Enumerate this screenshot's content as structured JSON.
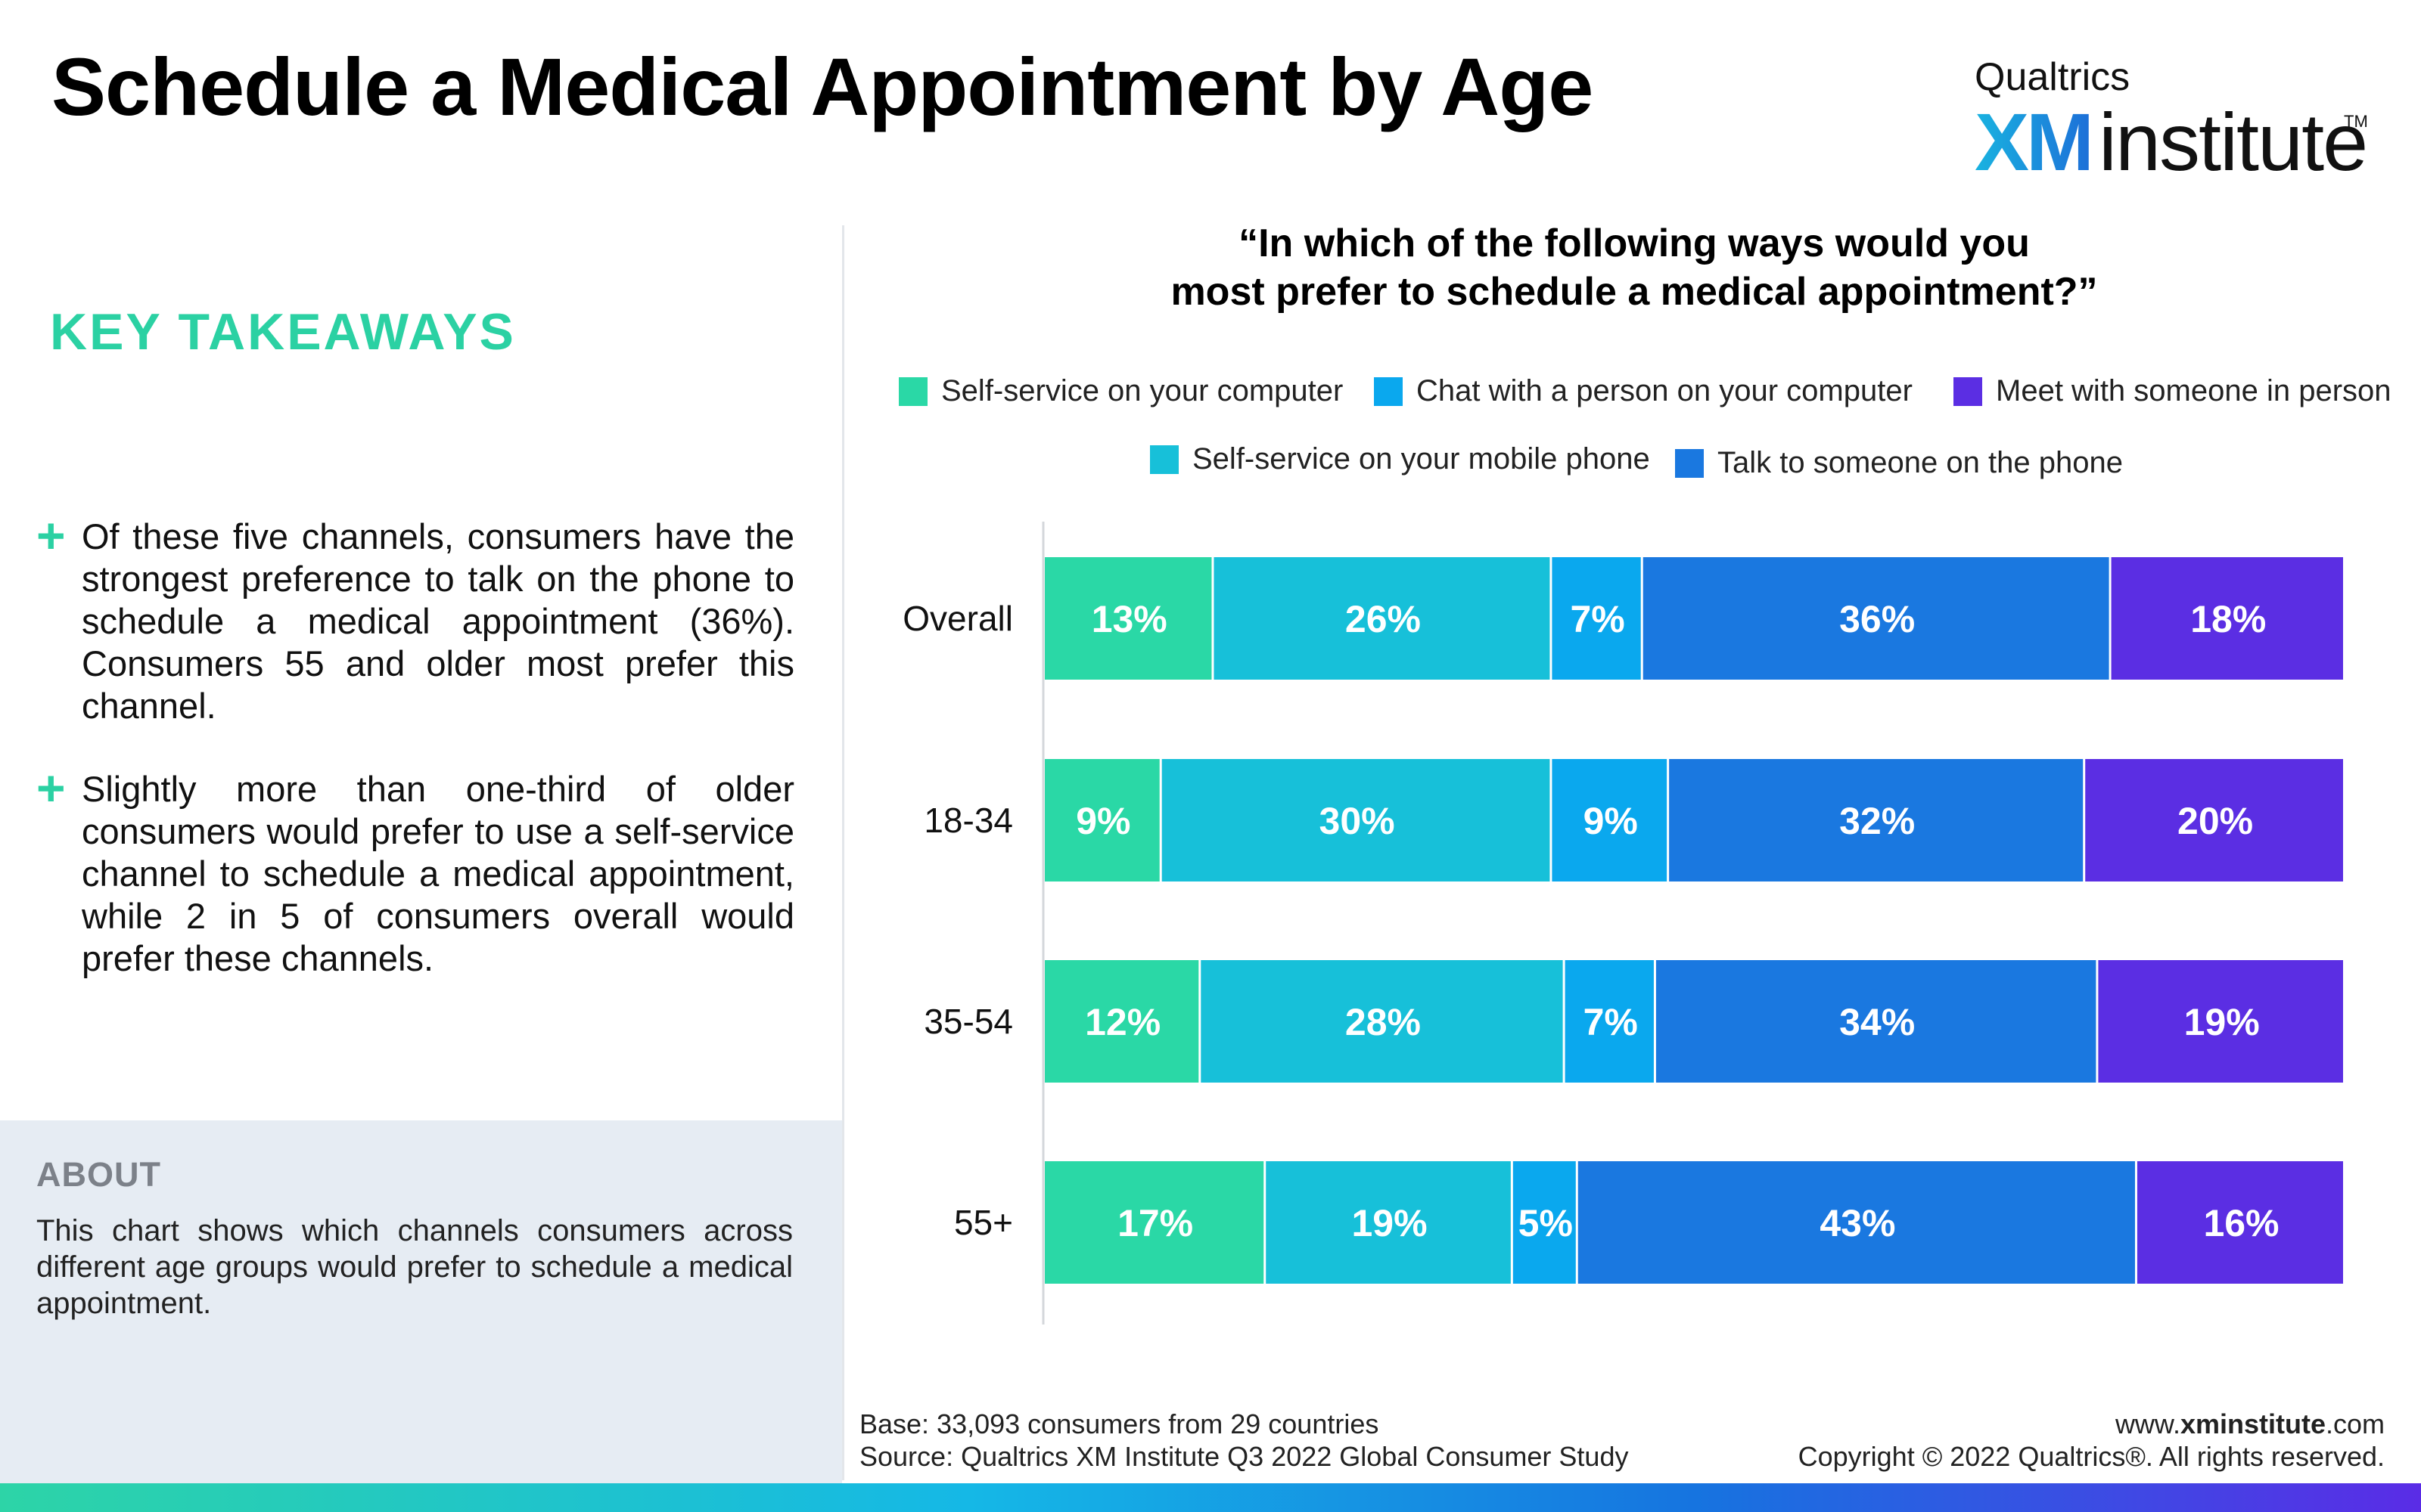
{
  "title": "Schedule a Medical Appointment by Age",
  "logo": {
    "top": "Qualtrics",
    "xm": "XM",
    "institute": "institute",
    "tm": "TM"
  },
  "key_takeaways": {
    "heading": "KEY TAKEAWAYS",
    "items": [
      {
        "icon": "plus-icon",
        "text": "Of these five channels, consumers have the strongest preference to talk on the phone to schedule a medical appointment (36%). Consumers 55 and older most prefer this channel."
      },
      {
        "icon": "plus-icon",
        "text": "Slightly more than one-third of older consumers would prefer to use a self-service channel to schedule a medical appointment, while 2 in 5 of consumers overall would prefer these channels."
      }
    ]
  },
  "about": {
    "heading": "ABOUT",
    "text": "This chart shows which channels consumers across different age groups would prefer to schedule a medical appointment."
  },
  "footer": {
    "base": "Base: 33,093 consumers from 29 countries",
    "source": "Source: Qualtrics XM Institute Q3 2022 Global Consumer Study",
    "url_prefix": "www.",
    "url_bold": "xminstitute",
    "url_suffix": ".com",
    "copyright": "Copyright © 2022 Qualtrics®. All rights reserved."
  },
  "colors": {
    "accent_green": "#2bd1a3",
    "self_service_computer": "#2ad8a6",
    "self_service_mobile": "#17c0d9",
    "chat_computer": "#0aa8ee",
    "talk_phone": "#1a78e0",
    "meet_in_person": "#5b2ee3"
  },
  "chart_data": {
    "type": "bar",
    "orientation": "horizontal",
    "stacked": true,
    "title": "“In which of the following ways would you most prefer to schedule a medical appointment?”",
    "title_lines": [
      "“In which of the following ways would you",
      "most prefer to schedule a medical appointment?”"
    ],
    "categories": [
      "Overall",
      "18-34",
      "35-54",
      "55+"
    ],
    "xlim": [
      0,
      100
    ],
    "unit": "%",
    "grid": false,
    "legend_position": "top",
    "series": [
      {
        "name": "Self-service on your computer",
        "values": [
          13,
          9,
          12,
          17
        ],
        "color": "#2ad8a6"
      },
      {
        "name": "Self-service on your mobile phone",
        "values": [
          26,
          30,
          28,
          19
        ],
        "color": "#17c0d9"
      },
      {
        "name": "Chat with a person on your computer",
        "values": [
          7,
          9,
          7,
          5
        ],
        "color": "#0aa8ee"
      },
      {
        "name": "Talk to someone on the phone",
        "values": [
          36,
          32,
          34,
          43
        ],
        "color": "#1a78e0"
      },
      {
        "name": "Meet with someone in person",
        "values": [
          18,
          20,
          19,
          16
        ],
        "color": "#5b2ee3"
      }
    ],
    "legend_order": [
      0,
      2,
      4,
      1,
      3
    ]
  }
}
